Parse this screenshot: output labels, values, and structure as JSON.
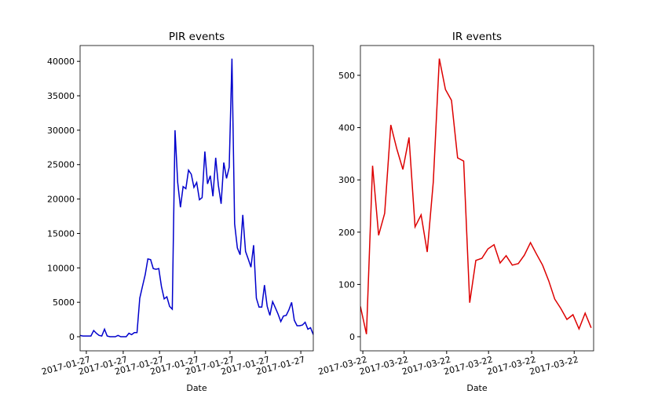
{
  "chart_data": [
    {
      "type": "line",
      "title": "PIR events",
      "xlabel": "Date",
      "color": "#0000cc",
      "values": [
        200,
        100,
        100,
        100,
        100,
        900,
        500,
        200,
        100,
        1100,
        100,
        0,
        0,
        0,
        200,
        0,
        0,
        0,
        500,
        300,
        600,
        600,
        5600,
        7300,
        9000,
        11300,
        11200,
        9900,
        9800,
        9900,
        7300,
        5500,
        5800,
        4400,
        4000,
        30000,
        22400,
        18800,
        21800,
        21500,
        24200,
        23600,
        21700,
        22400,
        19900,
        20200,
        26900,
        22200,
        23400,
        20400,
        26000,
        22000,
        19300,
        25300,
        23000,
        24600,
        40400,
        16400,
        12900,
        11900,
        17700,
        12400,
        11300,
        10100,
        13300,
        5600,
        4300,
        4300,
        7500,
        4400,
        3100,
        5100,
        4200,
        3300,
        2200,
        3000,
        3100,
        3900,
        5000,
        2400,
        1600,
        1600,
        1700,
        2100,
        1100,
        1300,
        300
      ],
      "xlim": [
        0,
        86
      ],
      "xticks": [
        {
          "value": 2.3,
          "label": "2017-01-27"
        },
        {
          "value": 15.9,
          "label": "2017-01-27"
        },
        {
          "value": 29.3,
          "label": "2017-01-27"
        },
        {
          "value": 42.3,
          "label": "2017-01-27"
        },
        {
          "value": 55.3,
          "label": "2017-01-27"
        },
        {
          "value": 68.4,
          "label": "2017-01-27"
        },
        {
          "value": 81.4,
          "label": "2017-01-27"
        }
      ],
      "ylim": [
        -2050,
        42300
      ],
      "yticks": [
        0,
        5000,
        10000,
        15000,
        20000,
        25000,
        30000,
        35000,
        40000
      ]
    },
    {
      "type": "line",
      "title": "IR events",
      "xlabel": "Date",
      "color": "#dd0000",
      "values": [
        58,
        5,
        327,
        194,
        236,
        405,
        359,
        320,
        381,
        210,
        233,
        162,
        296,
        532,
        473,
        452,
        342,
        336,
        65,
        146,
        150,
        168,
        176,
        141,
        155,
        137,
        140,
        156,
        180,
        158,
        137,
        107,
        72,
        54,
        33,
        42,
        15,
        45,
        17
      ],
      "xlim": [
        0,
        38.4
      ],
      "xticks": [
        {
          "value": 0.4,
          "label": "2017-03-22"
        },
        {
          "value": 7.2,
          "label": "2017-03-22"
        },
        {
          "value": 14.2,
          "label": "2017-03-22"
        },
        {
          "value": 21.1,
          "label": "2017-03-22"
        },
        {
          "value": 28.2,
          "label": "2017-03-22"
        },
        {
          "value": 35.2,
          "label": "2017-03-22"
        }
      ],
      "ylim": [
        -27,
        557
      ],
      "yticks": [
        0,
        100,
        200,
        300,
        400,
        500
      ]
    }
  ]
}
